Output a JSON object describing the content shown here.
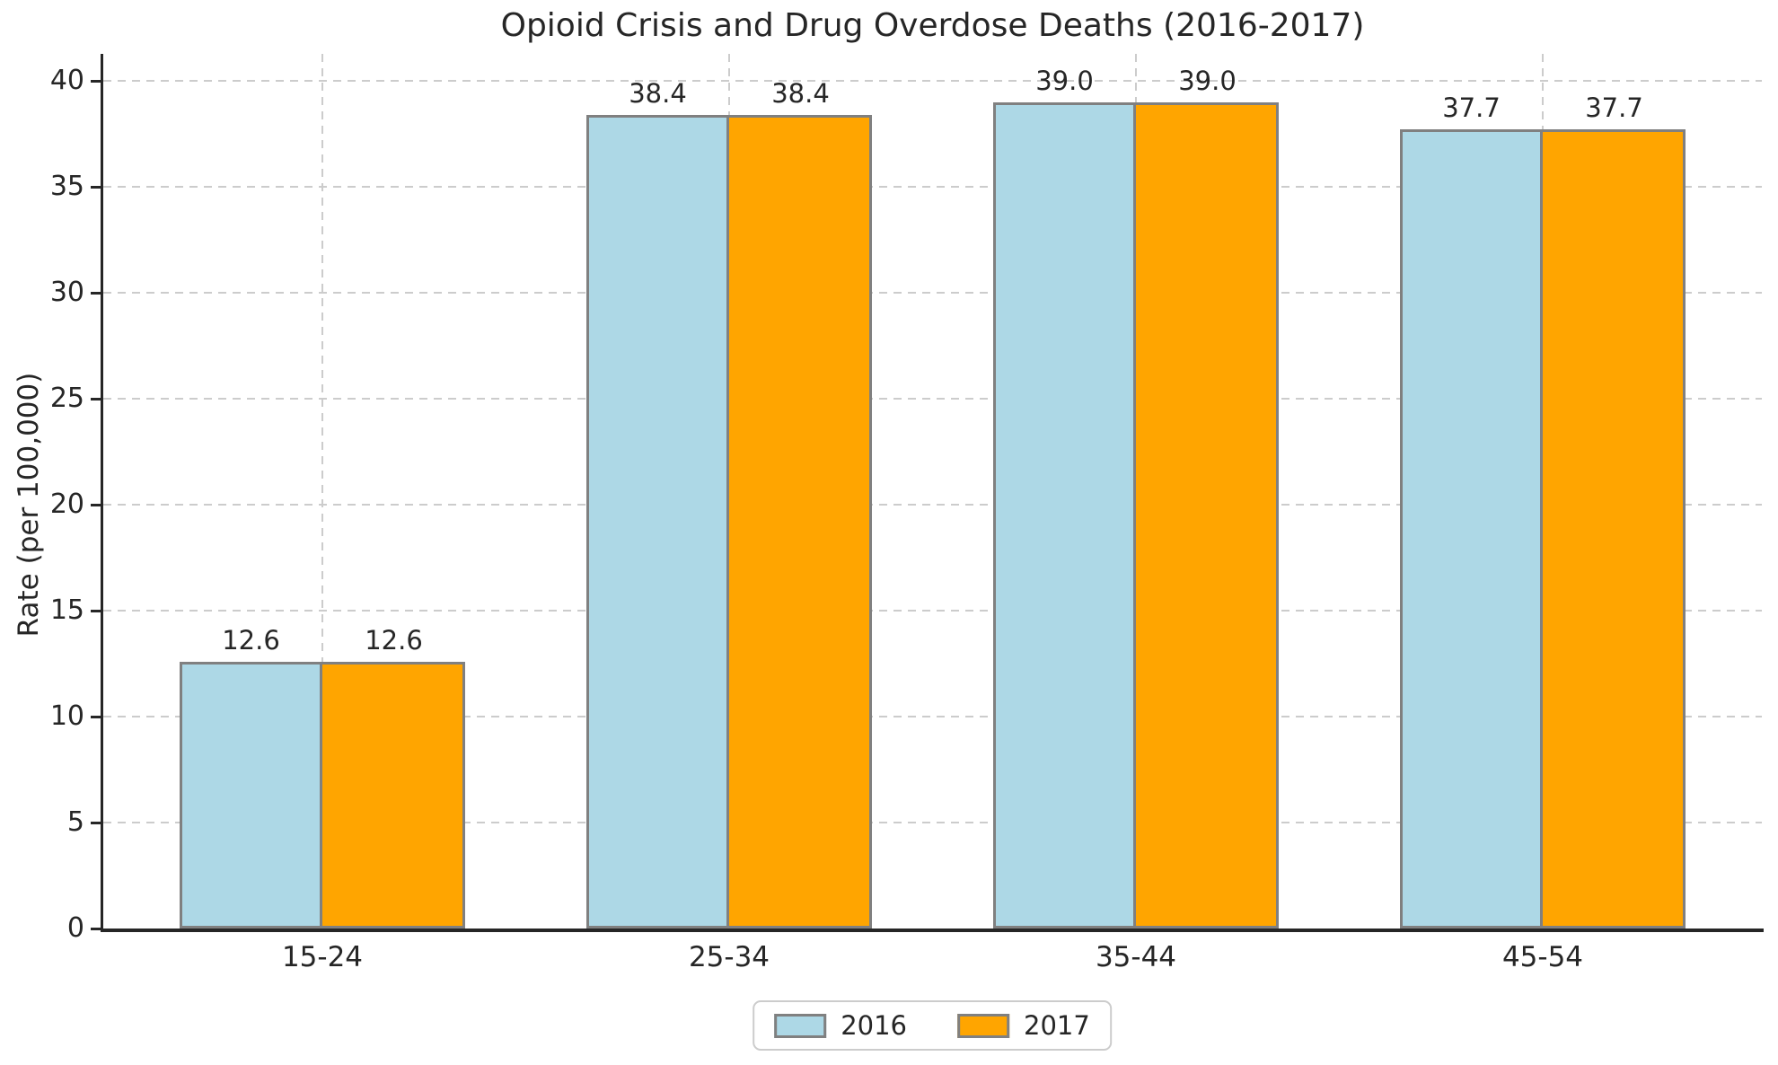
{
  "chart_data": {
    "type": "bar",
    "title": "Opioid Crisis and Drug Overdose Deaths (2016-2017)",
    "ylabel": "Rate (per 100,000)",
    "xlabel": "",
    "categories": [
      "15-24",
      "25-34",
      "35-44",
      "45-54"
    ],
    "series": [
      {
        "name": "2016",
        "color": "#ADD8E6",
        "values": [
          12.6,
          38.4,
          39.0,
          37.7
        ],
        "labels": [
          "12.6",
          "38.4",
          "39.0",
          "37.7"
        ]
      },
      {
        "name": "2017",
        "color": "#FFA500",
        "values": [
          12.6,
          38.4,
          39.0,
          37.7
        ],
        "labels": [
          "12.6",
          "38.4",
          "39.0",
          "37.7"
        ]
      }
    ],
    "ylim": [
      0,
      40
    ],
    "yticks": [
      0,
      5,
      10,
      15,
      20,
      25,
      30,
      35,
      40
    ],
    "grid": true,
    "grid_style": "dashed",
    "legend_position": "bottom-center",
    "value_labels": true,
    "colors": {
      "series_2016": "#ADD8E6",
      "series_2017": "#FFA500",
      "bar_edge": "#808080",
      "grid": "#cccccc",
      "axis": "#262626",
      "text": "#262626",
      "background": "#ffffff"
    }
  }
}
